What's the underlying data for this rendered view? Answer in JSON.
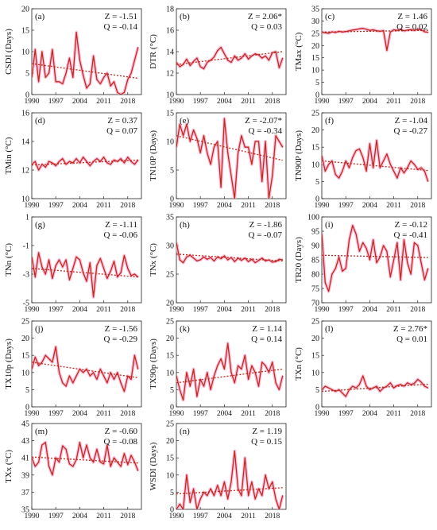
{
  "figure": {
    "colors": {
      "series": "#c0281c",
      "glow": "#f7b6d6",
      "trend": "#c0281c",
      "axis": "#222222"
    }
  },
  "chart_data": [
    {
      "type": "line",
      "panel_label": "(a)",
      "ylabel": "CSDI (Days)",
      "ylim": [
        0,
        20
      ],
      "yticks": [
        0,
        5,
        10,
        15,
        20
      ],
      "xlim": [
        1990,
        2022
      ],
      "xticks": [
        1990,
        1997,
        2004,
        2011,
        2018
      ],
      "stat_z": "Z = -1.51",
      "stat_q": "Q = -0.14",
      "x": [
        1990,
        1991,
        1992,
        1993,
        1994,
        1995,
        1996,
        1997,
        1998,
        1999,
        2000,
        2001,
        2002,
        2003,
        2004,
        2005,
        2006,
        2007,
        2008,
        2009,
        2010,
        2011,
        2012,
        2013,
        2014,
        2015,
        2016,
        2017,
        2018,
        2019,
        2020,
        2021
      ],
      "values": [
        4,
        10.5,
        3,
        10,
        4,
        5,
        10.5,
        3,
        3,
        2.5,
        5,
        8.5,
        4,
        14.5,
        8,
        4.5,
        1.5,
        2.5,
        9,
        3.5,
        2.5,
        4,
        5,
        2,
        3,
        0.5,
        0,
        0.5,
        3.5,
        5,
        8,
        11
      ],
      "trend": [
        7.2,
        3.8
      ],
      "grid": false
    },
    {
      "type": "line",
      "panel_label": "(b)",
      "ylabel": "DTR (°C)",
      "ylim": [
        10,
        18
      ],
      "yticks": [
        10,
        12,
        14,
        16,
        18
      ],
      "xlim": [
        1990,
        2022
      ],
      "xticks": [
        1990,
        1997,
        2004,
        2011,
        2018
      ],
      "stat_z": "Z = 2.06*",
      "stat_q": "Q = 0.03",
      "x": [
        1990,
        1991,
        1992,
        1993,
        1994,
        1995,
        1996,
        1997,
        1998,
        1999,
        2000,
        2001,
        2002,
        2003,
        2004,
        2005,
        2006,
        2007,
        2008,
        2009,
        2010,
        2011,
        2012,
        2013,
        2014,
        2015,
        2016,
        2017,
        2018,
        2019,
        2020,
        2021
      ],
      "values": [
        13,
        12.6,
        12.8,
        13.3,
        12.7,
        13.1,
        13.4,
        12.6,
        12.4,
        13.0,
        13.2,
        13.5,
        14.1,
        14.4,
        13.8,
        13.2,
        13.0,
        13.6,
        13.2,
        13.4,
        13.8,
        13.3,
        13.6,
        13.8,
        13.7,
        13.4,
        13.6,
        13.2,
        13.9,
        14.0,
        12.5,
        13.4
      ],
      "trend": [
        12.8,
        14.0
      ],
      "grid": false
    },
    {
      "type": "line",
      "panel_label": "(c)",
      "ylabel": "TMax (°C)",
      "ylim": [
        0,
        35
      ],
      "yticks": [
        0,
        5,
        10,
        15,
        20,
        25,
        30,
        35
      ],
      "xlim": [
        1990,
        2022
      ],
      "xticks": [
        1990,
        1997,
        2004,
        2011,
        2018
      ],
      "stat_z": "Z = 1.46",
      "stat_q": "Q = 0.02",
      "x": [
        1990,
        1991,
        1992,
        1993,
        1994,
        1995,
        1996,
        1997,
        1998,
        1999,
        2000,
        2001,
        2002,
        2003,
        2004,
        2005,
        2006,
        2007,
        2008,
        2009,
        2010,
        2011,
        2012,
        2013,
        2014,
        2015,
        2016,
        2017,
        2018,
        2019,
        2020,
        2021
      ],
      "values": [
        25.5,
        25.2,
        25.0,
        25.6,
        25.3,
        25.8,
        25.5,
        25.7,
        26.0,
        26.3,
        26.5,
        26.8,
        27.0,
        26.6,
        26.2,
        26.4,
        26.0,
        25.8,
        26.1,
        18.0,
        25.5,
        26.4,
        26.2,
        26.6,
        26.0,
        26.3,
        26.5,
        26.2,
        26.7,
        26.4,
        25.6,
        25.4
      ],
      "trend": [
        25.5,
        26.2
      ],
      "grid": false
    },
    {
      "type": "line",
      "panel_label": "(d)",
      "ylabel": "TMin (°C)",
      "ylim": [
        10,
        16
      ],
      "yticks": [
        10,
        12,
        14,
        16
      ],
      "xlim": [
        1990,
        2022
      ],
      "xticks": [
        1990,
        1997,
        2004,
        2011,
        2018
      ],
      "stat_z": "Z = 0.37",
      "stat_q": "Q = 0.07",
      "x": [
        1990,
        1991,
        1992,
        1993,
        1994,
        1995,
        1996,
        1997,
        1998,
        1999,
        2000,
        2001,
        2002,
        2003,
        2004,
        2005,
        2006,
        2007,
        2008,
        2009,
        2010,
        2011,
        2012,
        2013,
        2014,
        2015,
        2016,
        2017,
        2018,
        2019,
        2020,
        2021
      ],
      "values": [
        12.4,
        12.6,
        12.0,
        12.4,
        12.2,
        12.6,
        12.5,
        12.3,
        12.6,
        12.8,
        12.4,
        12.6,
        12.5,
        12.8,
        12.5,
        12.9,
        12.6,
        12.3,
        12.6,
        12.8,
        12.6,
        12.9,
        12.5,
        12.4,
        12.7,
        12.6,
        12.8,
        12.5,
        12.9,
        12.6,
        12.4,
        12.7
      ],
      "trend": [
        12.35,
        12.7
      ],
      "grid": false
    },
    {
      "type": "line",
      "panel_label": "(e)",
      "ylabel": "TN10P (Days)",
      "ylim": [
        0,
        15
      ],
      "yticks": [
        0,
        5,
        10,
        15
      ],
      "xlim": [
        1990,
        2022
      ],
      "xticks": [
        1990,
        1997,
        2004,
        2011,
        2018
      ],
      "stat_z": "Z = -2.07*",
      "stat_q": "Q = -0.34",
      "x": [
        1990,
        1991,
        1992,
        1993,
        1994,
        1995,
        1996,
        1997,
        1998,
        1999,
        2000,
        2001,
        2002,
        2003,
        2004,
        2005,
        2006,
        2007,
        2008,
        2009,
        2010,
        2011,
        2012,
        2013,
        2014,
        2015,
        2016,
        2017,
        2018,
        2019,
        2020,
        2021
      ],
      "values": [
        9,
        13,
        11,
        13,
        10,
        12,
        10.5,
        8,
        11,
        8,
        6,
        9,
        10,
        2,
        14,
        8,
        4,
        0,
        8,
        11,
        9,
        9,
        6,
        10,
        10,
        3,
        10,
        0,
        4,
        11,
        10,
        9
      ],
      "trend": [
        11.0,
        6.7
      ],
      "grid": false
    },
    {
      "type": "line",
      "panel_label": "(f)",
      "ylabel": "TN90P (Days)",
      "ylim": [
        0,
        25
      ],
      "yticks": [
        0,
        5,
        10,
        15,
        20,
        25
      ],
      "xlim": [
        1990,
        2022
      ],
      "xticks": [
        1990,
        1997,
        2004,
        2011,
        2018
      ],
      "stat_z": "Z = -1.04",
      "stat_q": "Q = -0.27",
      "x": [
        1990,
        1991,
        1992,
        1993,
        1994,
        1995,
        1996,
        1997,
        1998,
        1999,
        2000,
        2001,
        2002,
        2003,
        2004,
        2005,
        2006,
        2007,
        2008,
        2009,
        2010,
        2011,
        2012,
        2013,
        2014,
        2015,
        2016,
        2017,
        2018,
        2019,
        2020,
        2021
      ],
      "values": [
        12.5,
        8,
        10,
        11,
        7,
        6,
        8,
        11,
        9,
        12,
        14,
        14.5,
        12,
        8,
        16,
        9,
        17,
        9,
        11,
        13,
        10,
        8,
        6,
        9,
        7.5,
        9,
        11,
        10,
        8.5,
        9,
        8,
        5
      ],
      "trend": [
        11.0,
        8.2
      ],
      "grid": false
    },
    {
      "type": "line",
      "panel_label": "(g)",
      "ylabel": "TNn (°C)",
      "ylim": [
        -5,
        1
      ],
      "yticks": [
        -5,
        -3,
        -1,
        1
      ],
      "xlim": [
        1990,
        2022
      ],
      "xticks": [
        1990,
        1997,
        2004,
        2011,
        2018
      ],
      "stat_z": "Z = -1.11",
      "stat_q": "Q = -0.06",
      "x": [
        1990,
        1991,
        1992,
        1993,
        1994,
        1995,
        1996,
        1997,
        1998,
        1999,
        2000,
        2001,
        2002,
        2003,
        2004,
        2005,
        2006,
        2007,
        2008,
        2009,
        2010,
        2011,
        2012,
        2013,
        2014,
        2015,
        2016,
        2017,
        2018,
        2019,
        2020,
        2021
      ],
      "values": [
        -1.8,
        -3.2,
        -1.5,
        -2.5,
        -3.0,
        -2.0,
        -3.3,
        -2.4,
        -2.0,
        -2.5,
        -2.0,
        -3.4,
        -2.6,
        -1.8,
        -2.0,
        -2.9,
        -3.5,
        -2.2,
        -4.6,
        -2.4,
        -1.9,
        -2.6,
        -3.3,
        -2.8,
        -2.1,
        -3.2,
        -2.9,
        -1.7,
        -2.6,
        -3.1,
        -3.0,
        -3.2
      ],
      "trend": [
        -2.6,
        -3.2
      ],
      "grid": false
    },
    {
      "type": "line",
      "panel_label": "(h)",
      "ylabel": "TNx (°C)",
      "ylim": [
        20,
        35
      ],
      "yticks": [
        20,
        25,
        30,
        35
      ],
      "xlim": [
        1990,
        2022
      ],
      "xticks": [
        1990,
        1997,
        2004,
        2011,
        2018
      ],
      "stat_z": "Z = -1.86",
      "stat_q": "Q = -0.07",
      "x": [
        1990,
        1991,
        1992,
        1993,
        1994,
        1995,
        1996,
        1997,
        1998,
        1999,
        2000,
        2001,
        2002,
        2003,
        2004,
        2005,
        2006,
        2007,
        2008,
        2009,
        2010,
        2011,
        2012,
        2013,
        2014,
        2015,
        2016,
        2017,
        2018,
        2019,
        2020,
        2021
      ],
      "values": [
        30.5,
        27.5,
        27,
        28,
        28.3,
        27.8,
        27.3,
        27.5,
        28.0,
        27.6,
        27.9,
        27.3,
        28.0,
        27.7,
        28.2,
        27.5,
        27.9,
        27.2,
        27.8,
        27.4,
        27.8,
        27.2,
        27.6,
        27.0,
        27.4,
        27.8,
        27.3,
        27.5,
        27.1,
        27.2,
        27.6,
        27.5
      ],
      "trend": [
        28.5,
        27.3
      ],
      "grid": false
    },
    {
      "type": "line",
      "panel_label": "(i)",
      "ylabel": "TR20 (Days)",
      "ylim": [
        70,
        100
      ],
      "yticks": [
        70,
        75,
        80,
        85,
        90,
        95,
        100
      ],
      "xlim": [
        1990,
        2022
      ],
      "xticks": [
        1990,
        1997,
        2004,
        2011,
        2018
      ],
      "stat_z": "Z = -0.12",
      "stat_q": "Q = -0.41",
      "x": [
        1990,
        1991,
        1992,
        1993,
        1994,
        1995,
        1996,
        1997,
        1998,
        1999,
        2000,
        2001,
        2002,
        2003,
        2004,
        2005,
        2006,
        2007,
        2008,
        2009,
        2010,
        2011,
        2012,
        2013,
        2014,
        2015,
        2016,
        2017,
        2018,
        2019,
        2020,
        2021
      ],
      "values": [
        94,
        77,
        74,
        80,
        82,
        86,
        81,
        82,
        92,
        97,
        94,
        88,
        91,
        89,
        85,
        92,
        84,
        86,
        90,
        88,
        79,
        85,
        91,
        78,
        92,
        84,
        80,
        91,
        90,
        84,
        78,
        82
      ],
      "trend": [
        86.6,
        85.8
      ],
      "grid": false
    },
    {
      "type": "line",
      "panel_label": "(j)",
      "ylabel": "TX10p (Days)",
      "ylim": [
        0,
        25
      ],
      "yticks": [
        0,
        5,
        10,
        15,
        20,
        25
      ],
      "xlim": [
        1990,
        2022
      ],
      "xticks": [
        1990,
        1997,
        2004,
        2011,
        2018
      ],
      "stat_z": "Z = -1.56",
      "stat_q": "Q = -0.29",
      "x": [
        1990,
        1991,
        1992,
        1993,
        1994,
        1995,
        1996,
        1997,
        1998,
        1999,
        2000,
        2001,
        2002,
        2003,
        2004,
        2005,
        2006,
        2007,
        2008,
        2009,
        2010,
        2011,
        2012,
        2013,
        2014,
        2015,
        2016,
        2017,
        2018,
        2019,
        2020,
        2021
      ],
      "values": [
        11,
        14.5,
        12,
        13,
        15,
        14,
        13,
        17.5,
        10,
        7,
        6,
        9,
        7,
        9,
        11,
        10,
        11,
        9,
        10,
        8,
        11,
        9,
        7,
        10,
        8,
        10,
        7,
        4.5,
        9,
        8,
        15,
        11
      ],
      "trend": [
        13.0,
        8.5
      ],
      "grid": false
    },
    {
      "type": "line",
      "panel_label": "(k)",
      "ylabel": "TX90p (Days)",
      "ylim": [
        0,
        25
      ],
      "yticks": [
        0,
        5,
        10,
        15,
        20,
        25
      ],
      "xlim": [
        1990,
        2022
      ],
      "xticks": [
        1990,
        1997,
        2004,
        2011,
        2018
      ],
      "stat_z": "Z = 1.14",
      "stat_q": "Q = 0.14",
      "x": [
        1990,
        1991,
        1992,
        1993,
        1994,
        1995,
        1996,
        1997,
        1998,
        1999,
        2000,
        2001,
        2002,
        2003,
        2004,
        2005,
        2006,
        2007,
        2008,
        2009,
        2010,
        2011,
        2012,
        2013,
        2014,
        2015,
        2016,
        2017,
        2018,
        2019,
        2020,
        2021
      ],
      "values": [
        9,
        5,
        2,
        10,
        6,
        11,
        3,
        8,
        6,
        10,
        5,
        9,
        12,
        14,
        11,
        18.5,
        10,
        7,
        12,
        11,
        15,
        8,
        12,
        10,
        6,
        13,
        12,
        10,
        13,
        7,
        5,
        9
      ],
      "trend": [
        7.0,
        11.0
      ],
      "grid": false
    },
    {
      "type": "line",
      "panel_label": "(l)",
      "ylabel": "TXn (°C)",
      "ylim": [
        0,
        25
      ],
      "yticks": [
        0,
        5,
        10,
        15,
        20,
        25
      ],
      "xlim": [
        1990,
        2022
      ],
      "xticks": [
        1990,
        1997,
        2004,
        2011,
        2018
      ],
      "stat_z": "Z = 2.76*",
      "stat_q": "Q = 0.01",
      "x": [
        1990,
        1991,
        1992,
        1993,
        1994,
        1995,
        1996,
        1997,
        1998,
        1999,
        2000,
        2001,
        2002,
        2003,
        2004,
        2005,
        2006,
        2007,
        2008,
        2009,
        2010,
        2011,
        2012,
        2013,
        2014,
        2015,
        2016,
        2017,
        2018,
        2019,
        2020,
        2021
      ],
      "values": [
        5,
        6,
        5.5,
        5,
        4.5,
        5,
        4,
        3,
        5,
        6,
        5.5,
        6.5,
        9,
        6,
        5,
        5.5,
        6,
        4.5,
        5.5,
        6,
        7,
        5.5,
        6.2,
        6.5,
        6,
        7,
        6.5,
        6.8,
        8,
        7.2,
        6,
        5.5
      ],
      "trend": [
        4.5,
        6.6
      ],
      "grid": false
    },
    {
      "type": "line",
      "panel_label": "(m)",
      "ylabel": "TXx (°C)",
      "ylim": [
        35,
        45
      ],
      "yticks": [
        35,
        37,
        39,
        41,
        43,
        45
      ],
      "xlim": [
        1990,
        2022
      ],
      "xticks": [
        1990,
        1997,
        2004,
        2011,
        2018
      ],
      "stat_z": "Z = -0.60",
      "stat_q": "Q = -0.08",
      "x": [
        1990,
        1991,
        1992,
        1993,
        1994,
        1995,
        1996,
        1997,
        1998,
        1999,
        2000,
        2001,
        2002,
        2003,
        2004,
        2005,
        2006,
        2007,
        2008,
        2009,
        2010,
        2011,
        2012,
        2013,
        2014,
        2015,
        2016,
        2017,
        2018,
        2019,
        2020,
        2021
      ],
      "values": [
        41,
        40,
        40.5,
        42.5,
        42.8,
        40,
        39,
        41,
        40.5,
        42.4,
        42,
        40.3,
        40,
        40.8,
        42.8,
        41,
        42.5,
        41,
        40.5,
        42,
        40.5,
        40.3,
        42.5,
        40,
        41,
        40.5,
        40,
        41.5,
        40.2,
        41.3,
        40.5,
        39.5
      ],
      "trend": [
        41.1,
        40.4
      ],
      "grid": false
    },
    {
      "type": "line",
      "panel_label": "(n)",
      "ylabel": "WSDI (Days)",
      "ylim": [
        0,
        25
      ],
      "yticks": [
        0,
        5,
        10,
        15,
        20,
        25
      ],
      "xlim": [
        1990,
        2022
      ],
      "xticks": [
        1990,
        1997,
        2004,
        2011,
        2018
      ],
      "stat_z": "Z = 1.19",
      "stat_q": "Q = 0.15",
      "x": [
        1990,
        1991,
        1992,
        1993,
        1994,
        1995,
        1996,
        1997,
        1998,
        1999,
        2000,
        2001,
        2002,
        2003,
        2004,
        2005,
        2006,
        2007,
        2008,
        2009,
        2010,
        2011,
        2012,
        2013,
        2014,
        2015,
        2016,
        2017,
        2018,
        2019,
        2020,
        2021
      ],
      "values": [
        0,
        1.5,
        0,
        10,
        2,
        6,
        0,
        3,
        5,
        4,
        6,
        4,
        7,
        4,
        8,
        3,
        8,
        17,
        6,
        4,
        15,
        4,
        8,
        3,
        6,
        4,
        10,
        6,
        8,
        3,
        0,
        4
      ],
      "trend": [
        4.5,
        6.3
      ],
      "grid": false
    }
  ]
}
